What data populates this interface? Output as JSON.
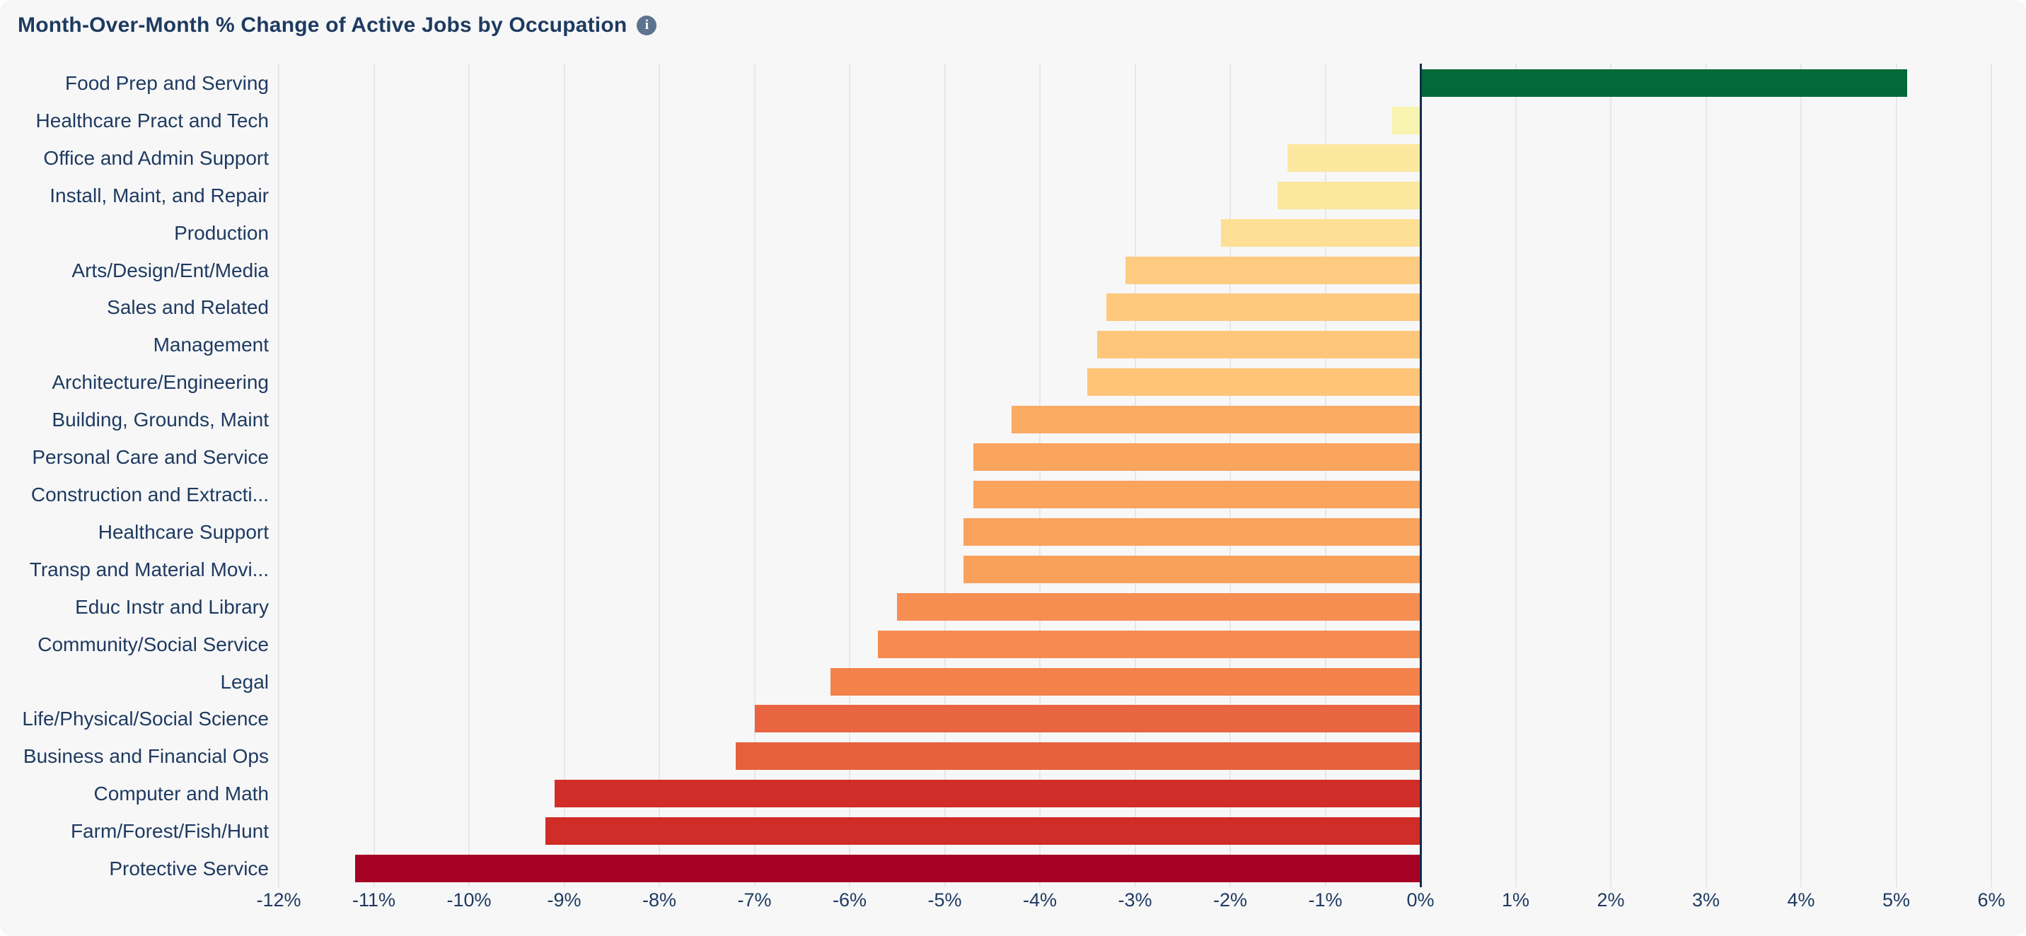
{
  "header": {
    "title": "Month-Over-Month % Change of Active Jobs by Occupation",
    "info_glyph": "i"
  },
  "colors": {
    "page_background": "#ffffff",
    "card_background": "#f7f7f8",
    "title_text": "#1e3a5f",
    "label_text": "#1e3a5f",
    "gridline": "#e7e7e9",
    "zero_axis_line": "#132c4e",
    "info_icon_background": "#5d7490"
  },
  "chart_data": {
    "type": "bar",
    "orientation": "horizontal",
    "title": "Month-Over-Month % Change of Active Jobs by Occupation",
    "xlabel": "",
    "ylabel": "",
    "xlim": [
      -12,
      6
    ],
    "grid": true,
    "zero_line": true,
    "legend": "none",
    "categories": [
      "Food Prep and Serving",
      "Healthcare Pract and Tech",
      "Office and Admin Support",
      "Install, Maint, and Repair",
      "Production",
      "Arts/Design/Ent/Media",
      "Sales and Related",
      "Management",
      "Architecture/Engineering",
      "Building, Grounds, Maint",
      "Personal Care and Service",
      "Construction and Extracti...",
      "Healthcare Support",
      "Transp and Material Movi...",
      "Educ Instr and Library",
      "Community/Social Service",
      "Legal",
      "Life/Physical/Social Science",
      "Business and Financial Ops",
      "Computer and Math",
      "Farm/Forest/Fish/Hunt",
      "Protective Service"
    ],
    "values": [
      5.1,
      -0.3,
      -1.4,
      -1.5,
      -2.1,
      -3.1,
      -3.3,
      -3.4,
      -3.5,
      -4.3,
      -4.7,
      -4.7,
      -4.8,
      -4.8,
      -5.5,
      -5.7,
      -6.2,
      -7.0,
      -7.2,
      -9.1,
      -9.2,
      -11.2
    ],
    "bar_colors": [
      "#046938",
      "#f8f3ae",
      "#fbe89e",
      "#fbe89e",
      "#fddf95",
      "#fecb80",
      "#fec87d",
      "#fec67b",
      "#fec478",
      "#fbab62",
      "#faa55e",
      "#faa45d",
      "#f9a25b",
      "#f9a15a",
      "#f68e52",
      "#f58b50",
      "#f3814a",
      "#e96440",
      "#e7603d",
      "#d12d29",
      "#d02c28",
      "#a50124"
    ],
    "x_tick_labels": [
      "-12%",
      "-11%",
      "-10%",
      "-9%",
      "-8%",
      "-7%",
      "-6%",
      "-5%",
      "-4%",
      "-3%",
      "-2%",
      "-1%",
      "0%",
      "1%",
      "2%",
      "3%",
      "4%",
      "5%",
      "6%"
    ]
  }
}
